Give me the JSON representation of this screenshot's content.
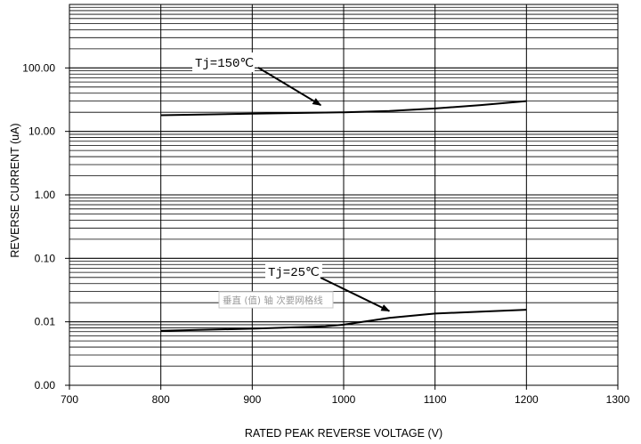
{
  "chart_data": {
    "type": "line",
    "title": "",
    "xlabel": "RATED PEAK REVERSE VOLTAGE (V)",
    "ylabel": "REVERSE CURRENT (uA)",
    "x_scale": "linear",
    "y_scale": "log",
    "xlim": [
      700,
      1300
    ],
    "ylim": [
      0.001,
      1000
    ],
    "x_ticks": [
      "700",
      "800",
      "900",
      "1000",
      "1100",
      "1200",
      "1300"
    ],
    "y_ticks": [
      {
        "value": 0.001,
        "label": "0.00"
      },
      {
        "value": 0.01,
        "label": "0.01"
      },
      {
        "value": 0.1,
        "label": "0.10"
      },
      {
        "value": 1,
        "label": "1.00"
      },
      {
        "value": 10,
        "label": "10.00"
      },
      {
        "value": 100,
        "label": "100.00"
      }
    ],
    "grid": true,
    "series": [
      {
        "name": "Tj=150℃",
        "x": [
          800,
          900,
          1000,
          1050,
          1100,
          1150,
          1200
        ],
        "y": [
          18,
          19,
          20,
          21,
          23,
          26,
          30
        ]
      },
      {
        "name": "Tj=25℃",
        "x": [
          800,
          900,
          980,
          1000,
          1050,
          1100,
          1150,
          1200
        ],
        "y": [
          0.0072,
          0.0078,
          0.0085,
          0.009,
          0.0115,
          0.0135,
          0.0145,
          0.0155
        ]
      }
    ],
    "annotations": [
      {
        "text": "Tj=150℃",
        "points_to": {
          "x": 975,
          "y": 20
        }
      },
      {
        "text": "Tj=25℃",
        "points_to": {
          "x": 1050,
          "y": 0.0114
        }
      }
    ],
    "watermark": "垂直 (值) 轴 次要网格线"
  }
}
